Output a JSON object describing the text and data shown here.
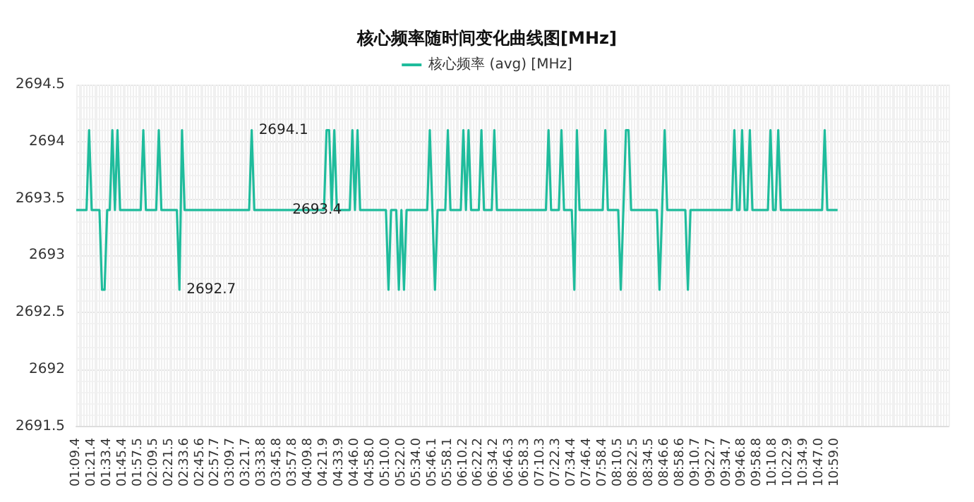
{
  "chart_data": {
    "type": "line",
    "title": "核心频率随时间变化曲线图[MHz]",
    "categories": [
      "01:09.4",
      null,
      null,
      null,
      null,
      null,
      "01:21.4",
      null,
      null,
      null,
      null,
      null,
      "01:33.4",
      null,
      null,
      null,
      null,
      null,
      "01:45.4",
      null,
      null,
      null,
      null,
      null,
      "01:57.5",
      null,
      null,
      null,
      null,
      null,
      "02:09.5",
      null,
      null,
      null,
      null,
      null,
      "02:21.5",
      null,
      null,
      null,
      null,
      null,
      "02:33.6",
      null,
      null,
      null,
      null,
      null,
      "02:45.6",
      null,
      null,
      null,
      null,
      null,
      "02:57.7",
      null,
      null,
      null,
      null,
      null,
      "03:09.7",
      null,
      null,
      null,
      null,
      null,
      "03:21.7",
      null,
      null,
      null,
      null,
      null,
      "03:33.8",
      null,
      null,
      null,
      null,
      null,
      "03:45.8",
      null,
      null,
      null,
      null,
      null,
      "03:57.8",
      null,
      null,
      null,
      null,
      null,
      "04:09.8",
      null,
      null,
      null,
      null,
      null,
      "04:21.9",
      null,
      null,
      null,
      null,
      null,
      "04:33.9",
      null,
      null,
      null,
      null,
      null,
      "04:46.0",
      null,
      null,
      null,
      null,
      null,
      "04:58.0",
      null,
      null,
      null,
      null,
      null,
      "05:10.0",
      null,
      null,
      null,
      null,
      null,
      "05:22.0",
      null,
      null,
      null,
      null,
      null,
      "05:34.0",
      null,
      null,
      null,
      null,
      null,
      "05:46.1",
      null,
      null,
      null,
      null,
      null,
      "05:58.1",
      null,
      null,
      null,
      null,
      null,
      "06:10.2",
      null,
      null,
      null,
      null,
      null,
      "06:22.2",
      null,
      null,
      null,
      null,
      null,
      "06:34.2",
      null,
      null,
      null,
      null,
      null,
      "06:46.3",
      null,
      null,
      null,
      null,
      null,
      "06:58.3",
      null,
      null,
      null,
      null,
      null,
      "07:10.3",
      null,
      null,
      null,
      null,
      null,
      "07:22.3",
      null,
      null,
      null,
      null,
      null,
      "07:34.4",
      null,
      null,
      null,
      null,
      null,
      "07:46.4",
      null,
      null,
      null,
      null,
      null,
      "07:58.4",
      null,
      null,
      null,
      null,
      null,
      "08:10.5",
      null,
      null,
      null,
      null,
      null,
      "08:22.5",
      null,
      null,
      null,
      null,
      null,
      "08:34.5",
      null,
      null,
      null,
      null,
      null,
      "08:46.6",
      null,
      null,
      null,
      null,
      null,
      "08:58.6",
      null,
      null,
      null,
      null,
      null,
      "09:10.7",
      null,
      null,
      null,
      null,
      null,
      "09:22.7",
      null,
      null,
      null,
      null,
      null,
      "09:34.7",
      null,
      null,
      null,
      null,
      null,
      "09:46.8",
      null,
      null,
      null,
      null,
      null,
      "09:58.8",
      null,
      null,
      null,
      null,
      null,
      "10:10.8",
      null,
      null,
      null,
      null,
      null,
      "10:22.9",
      null,
      null,
      null,
      null,
      null,
      "10:34.9",
      null,
      null,
      null,
      null,
      null,
      "10:47.0",
      null,
      null,
      null,
      null,
      null,
      "10:59.0",
      null,
      null,
      null,
      null,
      null,
      null,
      null,
      null,
      null,
      null,
      null,
      null,
      null,
      null,
      null,
      null,
      null,
      null,
      null,
      null,
      null,
      null,
      null,
      null,
      null,
      null,
      null,
      null,
      null,
      null,
      null,
      null,
      null,
      null,
      null,
      null,
      null,
      null,
      null,
      null,
      null,
      null,
      null,
      null
    ],
    "series": [
      {
        "name": "核心频率 (avg) [MHz]",
        "color": "#1fbc9c",
        "values": [
          2693.4,
          2693.4,
          2693.4,
          2693.4,
          2693.4,
          2694.1,
          2693.4,
          2693.4,
          2693.4,
          2693.4,
          2692.7,
          2692.7,
          2693.4,
          2693.4,
          2694.1,
          2693.4,
          2694.1,
          2693.4,
          2693.4,
          2693.4,
          2693.4,
          2693.4,
          2693.4,
          2693.4,
          2693.4,
          2693.4,
          2694.1,
          2693.4,
          2693.4,
          2693.4,
          2693.4,
          2693.4,
          2694.1,
          2693.4,
          2693.4,
          2693.4,
          2693.4,
          2693.4,
          2693.4,
          2693.4,
          2692.7,
          2694.1,
          2693.4,
          2693.4,
          2693.4,
          2693.4,
          2693.4,
          2693.4,
          2693.4,
          2693.4,
          2693.4,
          2693.4,
          2693.4,
          2693.4,
          2693.4,
          2693.4,
          2693.4,
          2693.4,
          2693.4,
          2693.4,
          2693.4,
          2693.4,
          2693.4,
          2693.4,
          2693.4,
          2693.4,
          2693.4,
          2693.4,
          2694.1,
          2693.4,
          2693.4,
          2693.4,
          2693.4,
          2693.4,
          2693.4,
          2693.4,
          2693.4,
          2693.4,
          2693.4,
          2693.4,
          2693.4,
          2693.4,
          2693.4,
          2693.4,
          2693.4,
          2693.4,
          2693.4,
          2693.4,
          2693.4,
          2693.4,
          2693.4,
          2693.4,
          2693.4,
          2693.4,
          2693.4,
          2693.4,
          2693.4,
          2694.1,
          2694.1,
          2693.4,
          2694.1,
          2693.4,
          2693.4,
          2693.4,
          2693.4,
          2693.4,
          2693.4,
          2694.1,
          2693.4,
          2694.1,
          2693.4,
          2693.4,
          2693.4,
          2693.4,
          2693.4,
          2693.4,
          2693.4,
          2693.4,
          2693.4,
          2693.4,
          2693.4,
          2692.7,
          2693.4,
          2693.4,
          2693.4,
          2692.7,
          2693.4,
          2692.7,
          2693.4,
          2693.4,
          2693.4,
          2693.4,
          2693.4,
          2693.4,
          2693.4,
          2693.4,
          2693.4,
          2694.1,
          2693.4,
          2692.7,
          2693.4,
          2693.4,
          2693.4,
          2693.4,
          2694.1,
          2693.4,
          2693.4,
          2693.4,
          2693.4,
          2693.4,
          2694.1,
          2693.4,
          2694.1,
          2693.4,
          2693.4,
          2693.4,
          2693.4,
          2694.1,
          2693.4,
          2693.4,
          2693.4,
          2693.4,
          2694.1,
          2693.4,
          2693.4,
          2693.4,
          2693.4,
          2693.4,
          2693.4,
          2693.4,
          2693.4,
          2693.4,
          2693.4,
          2693.4,
          2693.4,
          2693.4,
          2693.4,
          2693.4,
          2693.4,
          2693.4,
          2693.4,
          2693.4,
          2693.4,
          2694.1,
          2693.4,
          2693.4,
          2693.4,
          2693.4,
          2694.1,
          2693.4,
          2693.4,
          2693.4,
          2693.4,
          2692.7,
          2694.1,
          2693.4,
          2693.4,
          2693.4,
          2693.4,
          2693.4,
          2693.4,
          2693.4,
          2693.4,
          2693.4,
          2693.4,
          2694.1,
          2693.4,
          2693.4,
          2693.4,
          2693.4,
          2693.4,
          2692.7,
          2693.4,
          2694.1,
          2694.1,
          2693.4,
          2693.4,
          2693.4,
          2693.4,
          2693.4,
          2693.4,
          2693.4,
          2693.4,
          2693.4,
          2693.4,
          2693.4,
          2692.7,
          2693.4,
          2694.1,
          2693.4,
          2693.4,
          2693.4,
          2693.4,
          2693.4,
          2693.4,
          2693.4,
          2693.4,
          2692.7,
          2693.4,
          2693.4,
          2693.4,
          2693.4,
          2693.4,
          2693.4,
          2693.4,
          2693.4,
          2693.4,
          2693.4,
          2693.4,
          2693.4,
          2693.4,
          2693.4,
          2693.4,
          2693.4,
          2693.4,
          2694.1,
          2693.4,
          2693.4,
          2694.1,
          2693.4,
          2693.4,
          2694.1,
          2693.4,
          2693.4,
          2693.4,
          2693.4,
          2693.4,
          2693.4,
          2693.4,
          2694.1,
          2693.4,
          2693.4,
          2694.1,
          2693.4,
          2693.4,
          2693.4,
          2693.4,
          2693.4,
          2693.4,
          2693.4,
          2693.4,
          2693.4,
          2693.4,
          2693.4,
          2693.4,
          2693.4,
          2693.4,
          2693.4,
          2693.4,
          2693.4,
          2694.1,
          2693.4,
          2693.4,
          2693.4,
          2693.4,
          2693.4,
          null,
          null,
          null,
          null,
          null,
          null,
          null,
          null,
          null,
          null,
          null,
          null,
          null,
          null,
          null,
          null,
          null,
          null,
          null,
          null,
          null,
          null,
          null,
          null,
          null,
          null,
          null,
          null,
          null,
          null,
          null,
          null,
          null,
          null,
          null,
          null,
          null,
          null,
          null,
          null,
          null,
          null,
          null
        ],
        "value_labels": [
          null,
          null,
          null,
          null,
          null,
          null,
          null,
          null,
          null,
          null,
          null,
          null,
          null,
          null,
          null,
          null,
          null,
          null,
          null,
          null,
          null,
          null,
          null,
          null,
          null,
          null,
          null,
          null,
          null,
          null,
          null,
          null,
          null,
          null,
          null,
          null,
          null,
          null,
          null,
          null,
          "2692.7",
          null,
          null,
          null,
          null,
          null,
          null,
          null,
          null,
          null,
          null,
          null,
          null,
          null,
          null,
          null,
          null,
          null,
          null,
          null,
          null,
          null,
          null,
          null,
          null,
          null,
          null,
          null,
          "2694.1",
          null,
          null,
          null,
          null,
          null,
          null,
          null,
          null,
          null,
          null,
          null,
          null,
          "2693.4",
          null,
          null,
          null,
          null,
          null,
          null,
          null,
          null,
          null,
          null,
          null,
          null,
          null,
          null,
          null,
          null,
          null,
          null,
          null,
          null,
          null,
          null,
          null,
          null,
          null,
          null,
          null,
          null,
          null,
          null,
          null,
          null,
          null,
          null,
          null,
          null,
          null,
          null,
          null,
          null,
          null,
          null,
          null,
          null,
          null,
          null,
          null,
          null,
          null,
          null,
          null,
          null,
          null,
          null,
          null,
          null,
          null,
          null,
          null,
          null,
          null,
          null,
          null,
          null,
          null,
          null,
          null,
          null,
          null,
          null,
          null,
          null,
          null,
          null,
          null,
          null,
          null,
          null,
          null,
          null,
          null,
          null,
          null,
          null,
          null,
          null,
          null,
          null,
          null,
          null,
          null,
          null,
          null,
          null,
          null,
          null,
          null,
          null,
          null,
          null,
          null,
          null,
          null,
          null,
          null,
          null,
          null,
          null,
          null,
          null,
          null,
          null,
          null,
          null,
          null,
          null,
          null,
          null,
          null,
          null,
          null,
          null,
          null,
          null,
          null,
          null,
          null,
          null,
          null,
          null,
          null,
          null,
          null,
          null,
          null,
          null,
          null,
          null,
          null,
          null,
          null,
          null,
          null,
          null,
          null,
          null,
          null,
          null,
          null,
          null,
          null,
          null,
          null,
          null,
          null,
          null,
          null,
          null,
          null,
          null,
          null,
          null,
          null,
          null,
          null,
          null,
          null,
          null,
          null,
          null,
          null,
          null,
          null,
          null,
          null,
          null,
          null,
          null,
          null,
          null,
          null,
          null,
          null,
          null,
          null,
          null,
          null,
          null,
          null,
          null,
          null,
          null,
          null,
          null,
          null,
          null,
          null,
          null,
          null,
          null,
          null,
          null,
          null,
          null,
          null,
          null,
          null,
          null,
          null,
          null,
          null,
          null,
          null,
          null,
          null,
          null,
          null,
          null,
          null,
          null,
          null,
          null,
          null,
          null,
          null,
          null,
          null,
          null,
          null,
          null,
          null,
          null,
          null,
          null,
          null,
          null,
          null,
          null,
          null,
          null,
          null,
          null,
          null,
          null,
          null,
          null,
          null,
          null,
          null,
          null,
          null,
          null,
          null,
          null,
          null,
          null,
          null
        ]
      }
    ],
    "ylim": [
      2691.5,
      2694.5
    ],
    "yticks": [
      2691.5,
      2692,
      2692.5,
      2693,
      2693.5,
      2694,
      2694.5
    ],
    "grid": true,
    "legend": "top"
  }
}
